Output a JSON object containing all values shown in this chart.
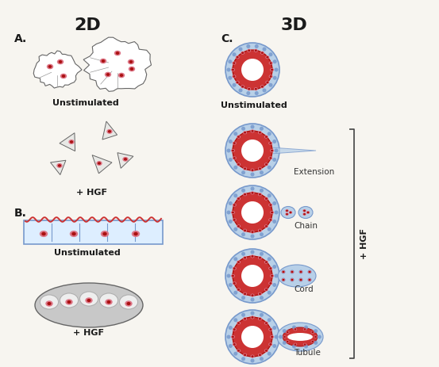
{
  "bg_color": "#f7f5f0",
  "title_2d": "2D",
  "title_3d": "3D",
  "label_A": "A.",
  "label_B": "B.",
  "label_C": "C.",
  "text_unstimulated": "Unstimulated",
  "text_hgf_2d": "+ HGF",
  "text_hgf_b": "+ HGF",
  "text_extension": "Extension",
  "text_chain": "Chain",
  "text_cord": "Cord",
  "text_tubule": "Tubule",
  "text_hgf_3d": "+ HGF",
  "red": "#cc3333",
  "dark_red": "#aa1111",
  "blue": "#7799cc",
  "light_blue": "#b8d0e8",
  "pale_blue": "#ddeeff",
  "pink": "#dd7788",
  "gray_cell": "#c8c8c8",
  "outline": "#999999",
  "dark_outline": "#666666"
}
